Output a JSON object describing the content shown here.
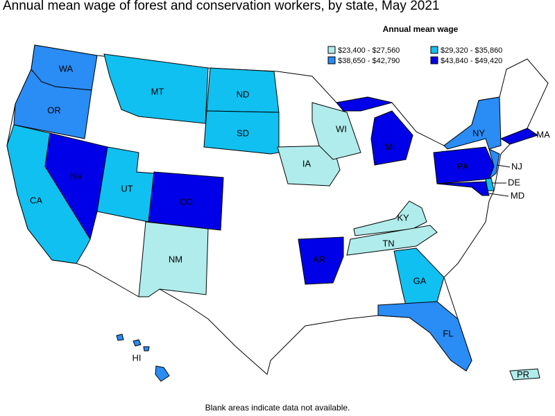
{
  "title": "Annual mean wage of forest and conservation workers, by state, May 2021",
  "legend": {
    "title": "Annual mean wage",
    "items": [
      {
        "label": "$23,400 - $27,560",
        "color": "#b0ecec"
      },
      {
        "label": "$29,320 - $35,860",
        "color": "#10c0f0"
      },
      {
        "label": "$38,650 - $42,790",
        "color": "#2a8cf5"
      },
      {
        "label": "$43,840 - $49,420",
        "color": "#0000e8"
      }
    ]
  },
  "states": [
    {
      "label": "WA",
      "class": 2
    },
    {
      "label": "OR",
      "class": 2
    },
    {
      "label": "CA",
      "class": 1
    },
    {
      "label": "NV",
      "class": 3
    },
    {
      "label": "UT",
      "class": 1
    },
    {
      "label": "CO",
      "class": 3
    },
    {
      "label": "MT",
      "class": 1
    },
    {
      "label": "ND",
      "class": 1
    },
    {
      "label": "SD",
      "class": 1
    },
    {
      "label": "NM",
      "class": 0
    },
    {
      "label": "IA",
      "class": 0
    },
    {
      "label": "WI",
      "class": 0
    },
    {
      "label": "MI",
      "class": 3
    },
    {
      "label": "AR",
      "class": 3
    },
    {
      "label": "KY",
      "class": 0
    },
    {
      "label": "TN",
      "class": 0
    },
    {
      "label": "GA",
      "class": 1
    },
    {
      "label": "FL",
      "class": 2
    },
    {
      "label": "NY",
      "class": 2
    },
    {
      "label": "PA",
      "class": 3
    },
    {
      "label": "NJ",
      "class": 2
    },
    {
      "label": "DE",
      "class": 1
    },
    {
      "label": "MD",
      "class": 3
    },
    {
      "label": "MA",
      "class": 3
    },
    {
      "label": "HI",
      "class": 2
    },
    {
      "label": "PR",
      "class": 0
    }
  ],
  "note": "Blank areas indicate data not available."
}
